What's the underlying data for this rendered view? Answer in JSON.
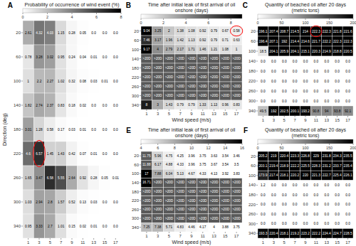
{
  "chart_data": [
    {
      "type": "heatmap",
      "label": "A",
      "title": "Probability of occurrence of wind event (%)",
      "x": [
        1,
        3,
        5,
        7,
        9,
        11,
        13,
        15,
        17
      ],
      "y": [
        20,
        60,
        100,
        140,
        180,
        220,
        260,
        300,
        340
      ],
      "ylabel": "Direction (deg)",
      "values": [
        [
          2.61,
          4.32,
          4.03,
          1.15,
          0.28,
          0.05,
          0.0,
          0.0,
          0.0
        ],
        [
          0.78,
          3.28,
          3.02,
          0.95,
          0.24,
          0.04,
          0.01,
          0.0,
          0.0
        ],
        [
          1.0,
          2.2,
          2.27,
          1.02,
          0.32,
          0.08,
          0.03,
          0.01,
          0.0
        ],
        [
          1.82,
          2.74,
          2.37,
          0.83,
          0.18,
          0.02,
          0.0,
          0.0,
          0.0
        ],
        [
          3.01,
          1.28,
          0.58,
          0.17,
          0.03,
          0.01,
          0.0,
          0.0,
          0.0
        ],
        [
          4.6,
          6.57,
          1.45,
          1.43,
          0.42,
          0.07,
          0.01,
          0.0,
          0.0
        ],
        [
          1.65,
          3.47,
          6.58,
          5.55,
          2.64,
          0.92,
          0.28,
          0.05,
          0.01
        ],
        [
          1.03,
          2.94,
          2.8,
          1.57,
          0.52,
          0.13,
          0.03,
          0.0,
          0.0
        ],
        [
          0.95,
          3.33,
          2.7,
          1.01,
          0.15,
          0.02,
          0.01,
          0.0,
          0.0
        ]
      ],
      "value_labels": [
        [
          "2.61",
          "4.32",
          "4.03",
          "1.15",
          "0.28",
          "0.05",
          "0.0",
          "0.0",
          "0.0"
        ],
        [
          "0.78",
          "3.28",
          "3.02",
          "0.95",
          "0.24",
          "0.04",
          "0.01",
          "0.0",
          "0.0"
        ],
        [
          "1",
          "2.2",
          "2.27",
          "1.02",
          "0.32",
          "0.08",
          "0.03",
          "0.01",
          "0.0"
        ],
        [
          "1.82",
          "2.74",
          "2.37",
          "0.83",
          "0.18",
          "0.02",
          "0.0",
          "0.0",
          "0.0"
        ],
        [
          "3.01",
          "1.28",
          "0.58",
          "0.17",
          "0.03",
          "0.01",
          "0.0",
          "0.0",
          "0.0"
        ],
        [
          "4.6",
          "6.57",
          "1.45",
          "1.43",
          "0.42",
          "0.07",
          "0.01",
          "0.0",
          "0.0"
        ],
        [
          "1.65",
          "3.47",
          "6.58",
          "5.55",
          "2.64",
          "0.92",
          "0.28",
          "0.05",
          "0.01"
        ],
        [
          "1.03",
          "2.94",
          "2.8",
          "1.57",
          "0.52",
          "0.13",
          "0.03",
          "0.0",
          "0.0"
        ],
        [
          "0.95",
          "3.33",
          "2.7",
          "1.01",
          "0.15",
          "0.02",
          "0.01",
          "0.0",
          "0.0"
        ]
      ],
      "data_labels": true,
      "colorbar_range": [
        0,
        8
      ],
      "colorbar_ticks": [
        0,
        2,
        4,
        6,
        8
      ],
      "highlights": [
        {
          "x": 3,
          "y": 220,
          "color": "red"
        }
      ]
    },
    {
      "type": "heatmap",
      "label": "B",
      "title": "Time after initial leak of first arrival of oil onshore (days)",
      "x": [
        1,
        3,
        5,
        7,
        9,
        11,
        13,
        15,
        17
      ],
      "y": [
        20,
        60,
        100,
        140,
        180,
        220,
        260,
        300,
        340
      ],
      "xlabel": "Wind speed (m/s)",
      "values": [
        [
          9.04,
          3.25,
          2.0,
          1.38,
          1.08,
          0.92,
          0.79,
          0.67,
          0.58
        ],
        [
          7.46,
          3.17,
          1.96,
          1.42,
          1.13,
          0.92,
          0.79,
          0.71,
          0.63
        ],
        [
          9.17,
          4.0,
          2.79,
          2.17,
          1.71,
          1.46,
          1.21,
          1.08,
          1.0
        ],
        [
          null,
          null,
          null,
          null,
          null,
          null,
          null,
          null,
          null
        ],
        [
          null,
          null,
          null,
          null,
          null,
          null,
          null,
          null,
          null
        ],
        [
          null,
          null,
          null,
          null,
          null,
          null,
          null,
          null,
          null
        ],
        [
          null,
          null,
          null,
          null,
          null,
          null,
          null,
          null,
          null
        ],
        [
          null,
          null,
          null,
          null,
          null,
          null,
          null,
          null,
          null
        ],
        [
          8.0,
          3.0,
          1.43,
          0.79,
          0.79,
          1.33,
          1.13,
          0.96,
          0.83
        ]
      ],
      "value_labels": [
        [
          "9.04",
          "3.25",
          "2",
          "1.38",
          "1.08",
          "0.92",
          "0.79",
          "0.67",
          "0.58"
        ],
        [
          "7.46",
          "3.17",
          "1.96",
          "1.42",
          "1.13",
          "0.92",
          "0.79",
          "0.71",
          "0.63"
        ],
        [
          "9.17",
          "4",
          "2.79",
          "2.17",
          "1.71",
          "1.46",
          "1.21",
          "1.08",
          "1"
        ],
        [
          ">20D",
          ">20D",
          ">20D",
          ">20D",
          ">20D",
          ">20D",
          ">20D",
          ">20D",
          ">20D"
        ],
        [
          ">20D",
          ">20D",
          ">20D",
          ">20D",
          ">20D",
          ">20D",
          ">20D",
          ">20D",
          ">20D"
        ],
        [
          ">20D",
          ">20D",
          ">20D",
          ">20D",
          ">20D",
          ">20D",
          ">20D",
          ">20D",
          ">20D"
        ],
        [
          ">20D",
          ">20D",
          ">20D",
          ">20D",
          ">20D",
          ">20D",
          ">20D",
          ">20D",
          ">20D"
        ],
        [
          ">20D",
          ">20D",
          ">20D",
          ">20D",
          ">20D",
          ">20D",
          ">20D",
          ">20D",
          ">20D"
        ],
        [
          "8",
          "3",
          "1.43",
          "0.79",
          "0.79",
          "1.33",
          "1.13",
          "0.96",
          "0.83"
        ]
      ],
      "data_labels": true,
      "colorbar_range": [
        0,
        9
      ],
      "colorbar_ticks": [
        0,
        2,
        4,
        6,
        8
      ],
      "highlights": [
        {
          "x": 17,
          "y": 20,
          "color": "red"
        }
      ]
    },
    {
      "type": "heatmap",
      "label": "C",
      "title": "Quantity of beached oil after 20 days (metric tons)",
      "x": [
        1,
        3,
        5,
        7,
        9,
        11,
        13,
        15,
        17
      ],
      "y": [
        20,
        60,
        100,
        140,
        180,
        220,
        260,
        300,
        340
      ],
      "values": [
        [
          196.1,
          207.4,
          208.7,
          214.5,
          214.0,
          222.3,
          222.3,
          221.8,
          221.6
        ],
        [
          196.4,
          207.1,
          192.0,
          214.4,
          214.6,
          221.7,
          222.2,
          222.3,
          222.3
        ],
        [
          18.5,
          204.1,
          205.9,
          204.1,
          215.1,
          220.3,
          214.9,
          218.8,
          220.5
        ],
        [
          0.0,
          0.0,
          0.0,
          0.0,
          0.0,
          0.0,
          0.0,
          0.0,
          0.0
        ],
        [
          0.0,
          0.0,
          0.0,
          0.0,
          0.0,
          0.0,
          0.0,
          0.0,
          0.0
        ],
        [
          0.0,
          0.0,
          0.0,
          0.0,
          0.0,
          0.0,
          0.0,
          0.0,
          0.0
        ],
        [
          0.0,
          0.0,
          0.0,
          0.0,
          0.0,
          0.0,
          0.0,
          0.0,
          0.0
        ],
        [
          0.0,
          0.0,
          0.0,
          0.0,
          0.0,
          0.0,
          0.0,
          0.0,
          0.0
        ],
        [
          49.5,
          192.0,
          202.5,
          200.1,
          193.2,
          90.8,
          94.0,
          93.8,
          92.1
        ]
      ],
      "value_labels": [
        [
          "196.1",
          "207.4",
          "208.7",
          "214.5",
          "214",
          "222.3",
          "222.3",
          "221.8",
          "221.6"
        ],
        [
          "196.4",
          "207.1",
          "192",
          "214.4",
          "214.6",
          "221.7",
          "222.2",
          "222.3",
          "222.3"
        ],
        [
          "18.5",
          "204.1",
          "205.9",
          "204.1",
          "215.1",
          "220.3",
          "214.9",
          "218.8",
          "220.5"
        ],
        [
          "0.0",
          "0.0",
          "0.0",
          "0.0",
          "0.0",
          "0.0",
          "0.0",
          "0.0",
          "0.0"
        ],
        [
          "0.0",
          "0.0",
          "0.0",
          "0.0",
          "0.0",
          "0.0",
          "0.0",
          "0.0",
          "0.0"
        ],
        [
          "0.0",
          "0.0",
          "0.0",
          "0.0",
          "0.0",
          "0.0",
          "0.0",
          "0.0",
          "0.0"
        ],
        [
          "0.0",
          "0.0",
          "0.0",
          "0.0",
          "0.0",
          "0.0",
          "0.0",
          "0.0",
          "0.0"
        ],
        [
          "0.0",
          "0.0",
          "0.0",
          "0.0",
          "0.0",
          "0.0",
          "0.0",
          "0.0",
          "0.0"
        ],
        [
          "49.5",
          "192",
          "202.5",
          "200.1",
          "193.2",
          "90.8",
          "94",
          "93.8",
          "92.1"
        ]
      ],
      "data_labels": true,
      "colorbar_range": [
        0,
        200
      ],
      "colorbar_ticks": [
        0,
        50,
        100,
        150,
        200
      ],
      "highlights": [
        {
          "x": 11,
          "y": 20,
          "color": "red"
        }
      ]
    },
    {
      "type": "heatmap",
      "label": "E",
      "title": "Time after initial leak of first arrival of oil onshore (days)",
      "x": [
        1,
        3,
        5,
        7,
        9,
        11,
        13,
        15,
        17
      ],
      "y": [
        20,
        60,
        100,
        140,
        180,
        220,
        260,
        300,
        340
      ],
      "xlabel": "Wind speed (m/s)",
      "values": [
        [
          11.75,
          5.96,
          4.75,
          4.25,
          3.96,
          3.75,
          3.63,
          3.54,
          3.46
        ],
        [
          11.88,
          6.17,
          4.88,
          4.33,
          3.96,
          3.75,
          3.67,
          3.54,
          3.5
        ],
        [
          17.0,
          7.88,
          6.04,
          5.13,
          4.67,
          4.33,
          4.13,
          3.92,
          3.83
        ],
        [
          16.71,
          null,
          null,
          null,
          null,
          null,
          null,
          null,
          null
        ],
        [
          null,
          null,
          null,
          null,
          null,
          null,
          null,
          null,
          null
        ],
        [
          null,
          null,
          null,
          null,
          null,
          null,
          null,
          null,
          null
        ],
        [
          null,
          null,
          null,
          null,
          null,
          null,
          null,
          null,
          null
        ],
        [
          null,
          null,
          null,
          null,
          null,
          null,
          null,
          null,
          null
        ],
        [
          7.25,
          7.38,
          5.71,
          4.83,
          4.46,
          4.17,
          4.0,
          3.88,
          3.75
        ]
      ],
      "value_labels": [
        [
          "11.75",
          "5.96",
          "4.75",
          "4.25",
          "3.96",
          "3.75",
          "3.63",
          "3.54",
          "3.46"
        ],
        [
          "11.88",
          "6.17",
          "4.88",
          "4.33",
          "3.96",
          "3.75",
          "3.67",
          "3.54",
          "3.5"
        ],
        [
          "17",
          "7.88",
          "6.04",
          "5.13",
          "4.67",
          "4.33",
          "4.13",
          "3.92",
          "3.83"
        ],
        [
          "16.71",
          ">20D",
          ">20D",
          ">20D",
          ">20D",
          ">20D",
          ">20D",
          ">20D",
          ">20D"
        ],
        [
          ">20D",
          ">20D",
          ">20D",
          ">20D",
          ">20D",
          ">20D",
          ">20D",
          ">20D",
          ">20D"
        ],
        [
          ">20D",
          ">20D",
          ">20D",
          ">20D",
          ">20D",
          ">20D",
          ">20D",
          ">20D",
          ">20D"
        ],
        [
          ">20D",
          ">20D",
          ">20D",
          ">20D",
          ">20D",
          ">20D",
          ">20D",
          ">20D",
          ">20D"
        ],
        [
          ">20D",
          ">20D",
          ">20D",
          ">20D",
          ">20D",
          ">20D",
          ">20D",
          ">20D",
          ">20D"
        ],
        [
          "7.25",
          "7.38",
          "5.71",
          "4.83",
          "4.46",
          "4.17",
          "4",
          "3.88",
          "3.75"
        ]
      ],
      "data_labels": true,
      "colorbar_range": [
        4,
        16
      ],
      "colorbar_ticks": [
        4,
        6,
        8,
        10,
        12,
        14,
        16
      ]
    },
    {
      "type": "heatmap",
      "label": "F",
      "title": "Quantity of beached oil after 20 days (metric tons)",
      "x": [
        1,
        3,
        5,
        7,
        9,
        11,
        13,
        15,
        17
      ],
      "y": [
        20,
        60,
        100,
        140,
        180,
        220,
        260,
        300,
        340
      ],
      "values": [
        [
          205.2,
          219.0,
          220.4,
          223.3,
          226.8,
          229.0,
          231.8,
          234.3,
          235.5
        ],
        [
          203.1,
          219.4,
          218.9,
          222.2,
          225.5,
          228.3,
          231.2,
          233.7,
          235.4
        ],
        [
          173.9,
          217.4,
          218.1,
          220.2,
          220.0,
          221.3,
          222.7,
          225.4,
          226.1
        ],
        [
          1.2,
          0.0,
          0.0,
          0.0,
          0.0,
          0.0,
          0.0,
          0.0,
          0.0
        ],
        [
          0.0,
          0.0,
          0.0,
          0.0,
          0.0,
          0.0,
          0.0,
          0.0,
          0.0
        ],
        [
          0.0,
          0.0,
          0.0,
          0.0,
          0.0,
          0.0,
          0.0,
          0.0,
          0.0
        ],
        [
          0.0,
          0.0,
          0.0,
          0.0,
          0.0,
          0.0,
          0.0,
          0.0,
          0.0
        ],
        [
          0.0,
          0.0,
          0.0,
          0.0,
          0.0,
          0.0,
          0.0,
          0.0,
          0.0
        ],
        [
          193.3,
          220.4,
          218.1,
          219.2,
          223.2,
          222.2,
          224.4,
          224.7,
          228.5
        ]
      ],
      "value_labels": [
        [
          "205.2",
          "219",
          "220.4",
          "223.3",
          "226.8",
          "229",
          "231.8",
          "234.3",
          "235.5"
        ],
        [
          "203.1",
          "219.4",
          "218.9",
          "222.2",
          "225.5",
          "228.3",
          "231.2",
          "233.7",
          "235.4"
        ],
        [
          "173.9",
          "217.4",
          "218.1",
          "220.2",
          "220",
          "221.3",
          "222.7",
          "225.4",
          "226.1"
        ],
        [
          "1.2",
          "0.0",
          "0.0",
          "0.0",
          "0.0",
          "0.0",
          "0.0",
          "0.0",
          "0.0"
        ],
        [
          "0.0",
          "0.0",
          "0.0",
          "0.0",
          "0.0",
          "0.0",
          "0.0",
          "0.0",
          "0.0"
        ],
        [
          "0.0",
          "0.0",
          "0.0",
          "0.0",
          "0.0",
          "0.0",
          "0.0",
          "0.0",
          "0.0"
        ],
        [
          "0.0",
          "0.0",
          "0.0",
          "0.0",
          "0.0",
          "0.0",
          "0.0",
          "0.0",
          "0.0"
        ],
        [
          "0.0",
          "0.0",
          "0.0",
          "0.0",
          "0.0",
          "0.0",
          "0.0",
          "0.0",
          "0.0"
        ],
        [
          "193.3",
          "220.4",
          "218.1",
          "219.2",
          "223.2",
          "222.2",
          "224.4",
          "224.7",
          "228.5"
        ]
      ],
      "data_labels": true,
      "colorbar_range": [
        0,
        200
      ],
      "colorbar_ticks": [
        0,
        50,
        100,
        150,
        200
      ]
    }
  ]
}
